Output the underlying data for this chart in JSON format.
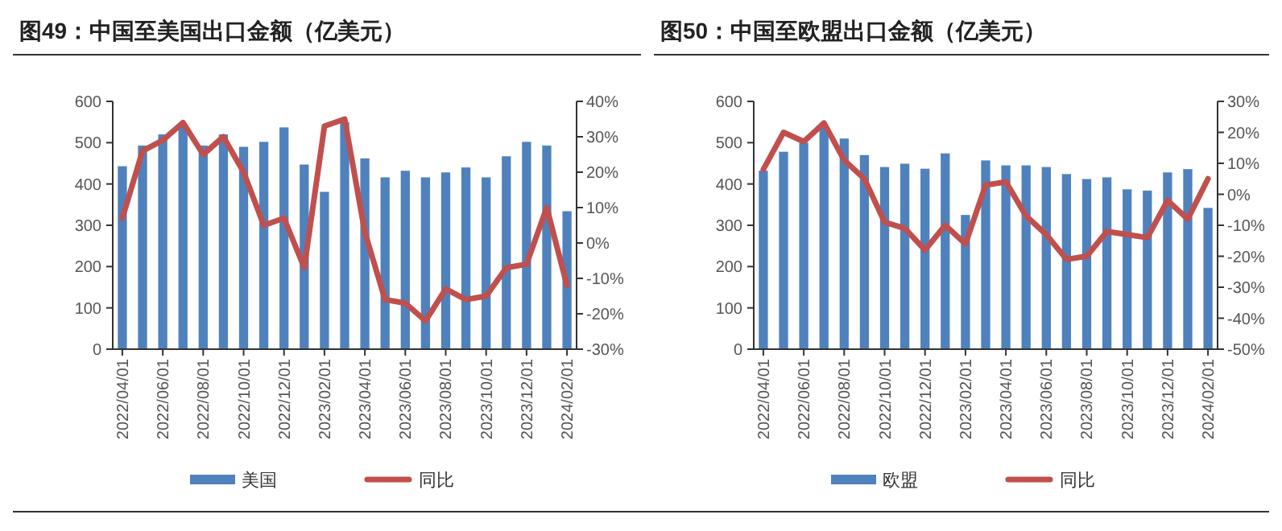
{
  "chart_data": [
    {
      "type": "bar",
      "title": "图49：中国至美国出口金额（亿美元）",
      "categories": [
        "2022/04/01",
        null,
        "2022/06/01",
        null,
        "2022/08/01",
        null,
        "2022/10/01",
        null,
        "2022/12/01",
        null,
        "2023/02/01",
        null,
        "2023/04/01",
        null,
        "2023/06/01",
        null,
        "2023/08/01",
        null,
        "2023/10/01",
        null,
        "2023/12/01",
        null,
        "2024/02/01"
      ],
      "series": [
        {
          "name": "美国",
          "color": "#4f81bd",
          "values": [
            443,
            493,
            520,
            540,
            493,
            520,
            490,
            502,
            537,
            447,
            381,
            550,
            462,
            416,
            432,
            416,
            428,
            440,
            416,
            467,
            502,
            493,
            334
          ]
        },
        {
          "name": "同比",
          "type": "line",
          "axis": "y2",
          "color": "#c0504d",
          "values": [
            7,
            26,
            29,
            34,
            25,
            30,
            20,
            5,
            7,
            -7,
            33,
            35,
            3,
            -16,
            -17,
            -22,
            -13,
            -16,
            -15,
            -7,
            -6,
            10,
            -12
          ]
        }
      ],
      "ylim": [
        0,
        600
      ],
      "yticks": [
        0,
        100,
        200,
        300,
        400,
        500,
        600
      ],
      "y2lim": [
        -30,
        40
      ],
      "y2ticks": [
        {
          "value": -30,
          "label": "-30%"
        },
        {
          "value": -20,
          "label": "-20%"
        },
        {
          "value": -10,
          "label": "-10%"
        },
        {
          "value": 0,
          "label": "0%"
        },
        {
          "value": 10,
          "label": "10%"
        },
        {
          "value": 20,
          "label": "20%"
        },
        {
          "value": 30,
          "label": "30%"
        },
        {
          "value": 40,
          "label": "40%"
        }
      ],
      "legend": "bottom"
    },
    {
      "type": "bar",
      "title": "图50：中国至欧盟出口金额（亿美元）",
      "categories": [
        "2022/04/01",
        null,
        "2022/06/01",
        null,
        "2022/08/01",
        null,
        "2022/10/01",
        null,
        "2022/12/01",
        null,
        "2023/02/01",
        null,
        "2023/04/01",
        null,
        "2023/06/01",
        null,
        "2023/08/01",
        null,
        "2023/10/01",
        null,
        "2023/12/01",
        null,
        "2024/02/01"
      ],
      "series": [
        {
          "name": "欧盟",
          "color": "#4f81bd",
          "values": [
            432,
            478,
            500,
            540,
            510,
            470,
            441,
            449,
            437,
            474,
            325,
            457,
            445,
            445,
            441,
            424,
            412,
            416,
            387,
            384,
            428,
            436,
            342
          ]
        },
        {
          "name": "同比",
          "type": "line",
          "axis": "y2",
          "color": "#c0504d",
          "values": [
            8,
            20,
            17,
            23,
            11,
            5,
            -9,
            -11,
            -18,
            -10,
            -16,
            3,
            4,
            -7,
            -13,
            -21,
            -20,
            -12,
            -13,
            -14,
            -2,
            -8,
            5
          ]
        }
      ],
      "ylim": [
        0,
        600
      ],
      "yticks": [
        0,
        100,
        200,
        300,
        400,
        500,
        600
      ],
      "y2lim": [
        -50,
        30
      ],
      "y2ticks": [
        {
          "value": -50,
          "label": "-50%"
        },
        {
          "value": -40,
          "label": "-40%"
        },
        {
          "value": -30,
          "label": "-30%"
        },
        {
          "value": -20,
          "label": "-20%"
        },
        {
          "value": -10,
          "label": "-10%"
        },
        {
          "value": 0,
          "label": "0%"
        },
        {
          "value": 10,
          "label": "10%"
        },
        {
          "value": 20,
          "label": "20%"
        },
        {
          "value": 30,
          "label": "30%"
        }
      ],
      "legend": "bottom"
    }
  ]
}
